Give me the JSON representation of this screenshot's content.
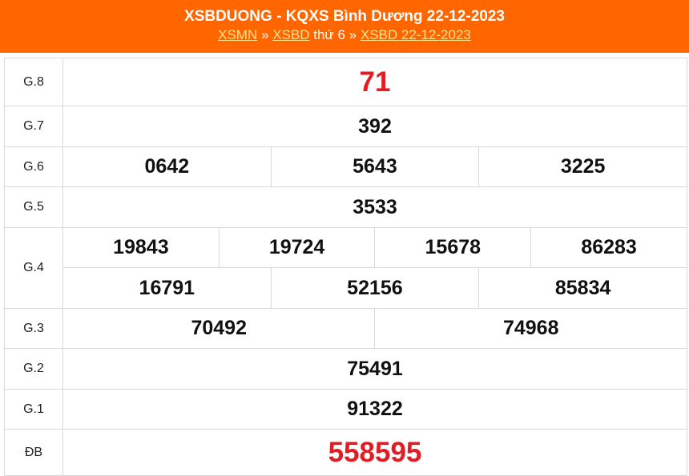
{
  "header": {
    "title": "XSBDUONG - KQXS Bình Dương 22-12-2023",
    "breadcrumb": [
      {
        "label": "XSMN",
        "link": true
      },
      {
        "label": "»",
        "link": false
      },
      {
        "label": "XSBD",
        "link": true
      },
      {
        "label": "thứ 6 »",
        "link": false
      },
      {
        "label": "XSBD 22-12-2023",
        "link": true
      }
    ]
  },
  "colors": {
    "header_bg": "#ff6600",
    "special_numbers": "#e31b23"
  },
  "results": {
    "g8": {
      "label": "G.8",
      "numbers": [
        "71"
      ]
    },
    "g7": {
      "label": "G.7",
      "numbers": [
        "392"
      ]
    },
    "g6": {
      "label": "G.6",
      "numbers": [
        "0642",
        "5643",
        "3225"
      ]
    },
    "g5": {
      "label": "G.5",
      "numbers": [
        "3533"
      ]
    },
    "g4": {
      "label": "G.4",
      "numbers": [
        "19843",
        "19724",
        "15678",
        "86283",
        "16791",
        "52156",
        "85834"
      ]
    },
    "g3": {
      "label": "G.3",
      "numbers": [
        "70492",
        "74968"
      ]
    },
    "g2": {
      "label": "G.2",
      "numbers": [
        "75491"
      ]
    },
    "g1": {
      "label": "G.1",
      "numbers": [
        "91322"
      ]
    },
    "db": {
      "label": "ĐB",
      "numbers": [
        "558595"
      ]
    }
  }
}
